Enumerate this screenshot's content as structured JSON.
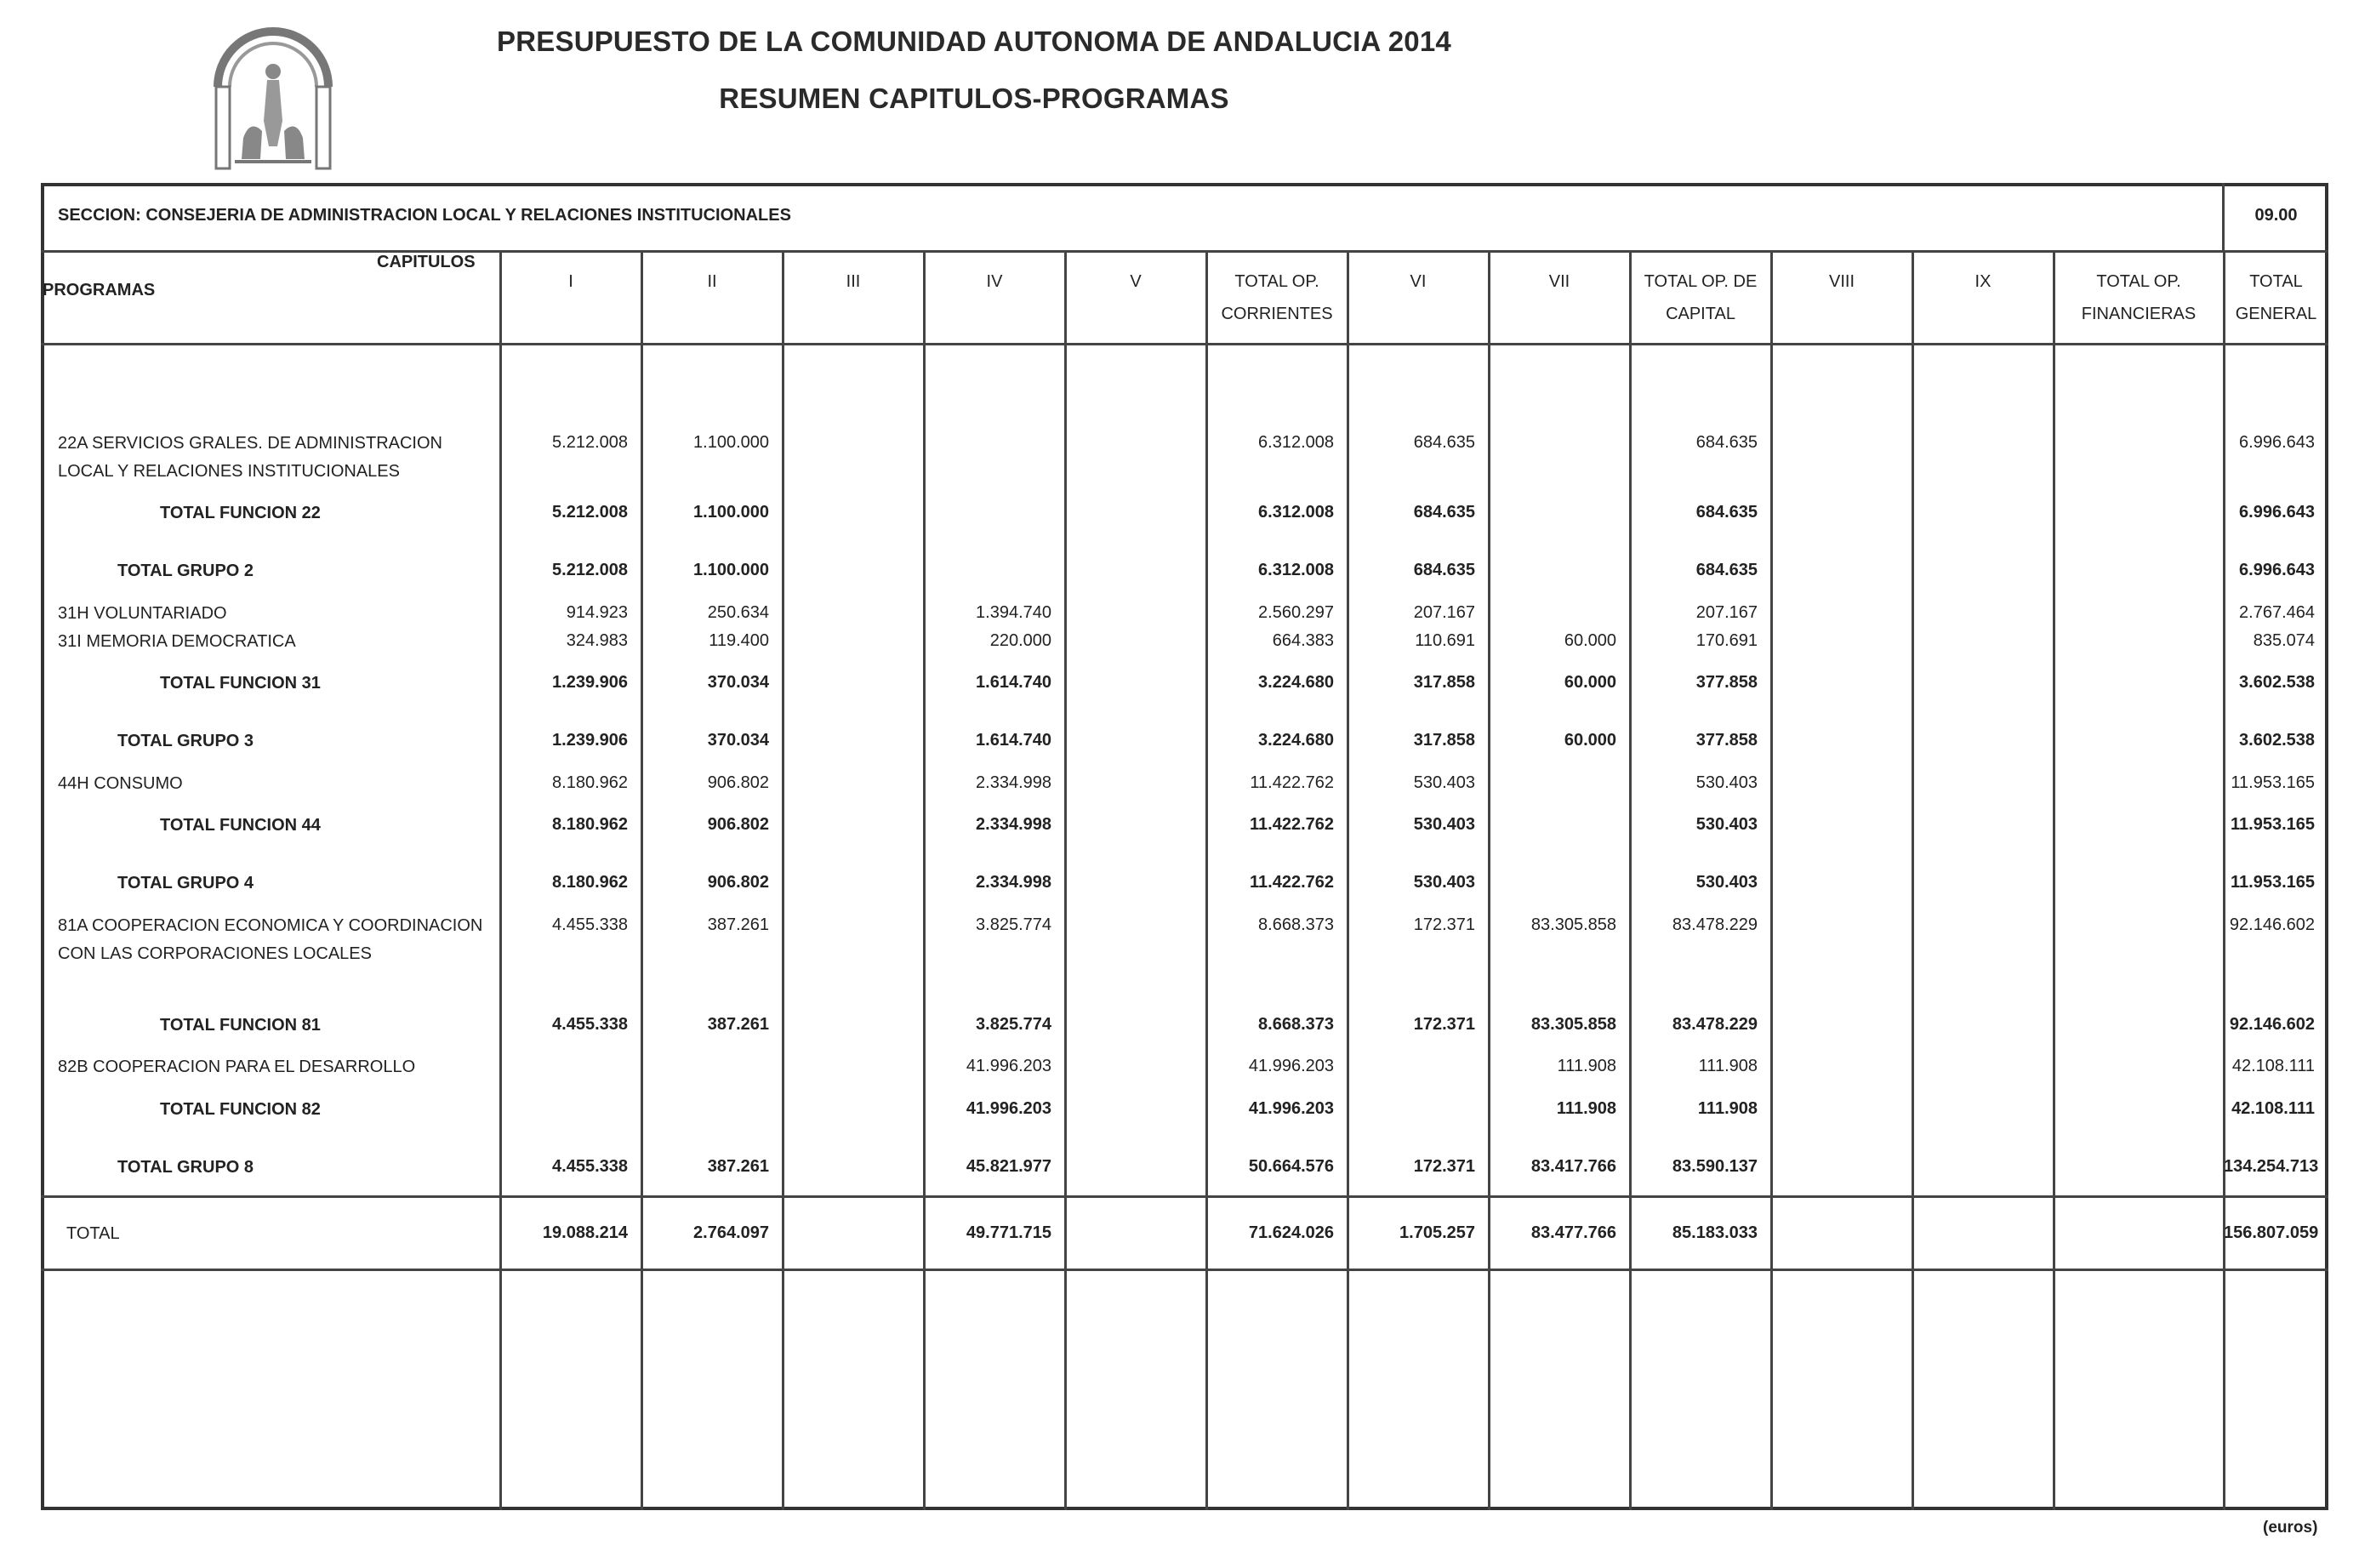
{
  "header": {
    "title": "PRESUPUESTO DE LA COMUNIDAD AUTONOMA DE ANDALUCIA 2014",
    "subtitle": "RESUMEN CAPITULOS-PROGRAMAS",
    "logo_icon": "coat-of-arms-andalucia-icon"
  },
  "section": {
    "label": "SECCION: CONSEJERIA DE ADMINISTRACION LOCAL Y RELACIONES INSTITUCIONALES",
    "code": "09.00"
  },
  "columns": {
    "capitulos": "CAPITULOS",
    "programas": "PROGRAMAS",
    "heads": [
      [
        "I"
      ],
      [
        "II"
      ],
      [
        "III"
      ],
      [
        "IV"
      ],
      [
        "V"
      ],
      [
        "TOTAL OP.",
        "CORRIENTES"
      ],
      [
        "VI"
      ],
      [
        "VII"
      ],
      [
        "TOTAL OP. DE",
        "CAPITAL"
      ],
      [
        "VIII"
      ],
      [
        "IX"
      ],
      [
        "TOTAL OP.",
        "FINANCIERAS"
      ],
      [
        "TOTAL",
        "GENERAL"
      ]
    ]
  },
  "rows": [
    {
      "label": "22A SERVICIOS GRALES. DE ADMINISTRACION LOCAL Y RELACIONES INSTITUCIONALES",
      "kind": "program",
      "values": [
        "5.212.008",
        "1.100.000",
        "",
        "",
        "",
        "6.312.008",
        "684.635",
        "",
        "684.635",
        "",
        "",
        "",
        "6.996.643"
      ]
    },
    {
      "label": "TOTAL FUNCION 22",
      "kind": "funcion",
      "values": [
        "5.212.008",
        "1.100.000",
        "",
        "",
        "",
        "6.312.008",
        "684.635",
        "",
        "684.635",
        "",
        "",
        "",
        "6.996.643"
      ]
    },
    {
      "label": "TOTAL GRUPO 2",
      "kind": "grupo",
      "values": [
        "5.212.008",
        "1.100.000",
        "",
        "",
        "",
        "6.312.008",
        "684.635",
        "",
        "684.635",
        "",
        "",
        "",
        "6.996.643"
      ]
    },
    {
      "label": "31H VOLUNTARIADO",
      "kind": "program",
      "values": [
        "914.923",
        "250.634",
        "",
        "1.394.740",
        "",
        "2.560.297",
        "207.167",
        "",
        "207.167",
        "",
        "",
        "",
        "2.767.464"
      ]
    },
    {
      "label": "31I MEMORIA DEMOCRATICA",
      "kind": "program",
      "values": [
        "324.983",
        "119.400",
        "",
        "220.000",
        "",
        "664.383",
        "110.691",
        "60.000",
        "170.691",
        "",
        "",
        "",
        "835.074"
      ]
    },
    {
      "label": "TOTAL FUNCION 31",
      "kind": "funcion",
      "values": [
        "1.239.906",
        "370.034",
        "",
        "1.614.740",
        "",
        "3.224.680",
        "317.858",
        "60.000",
        "377.858",
        "",
        "",
        "",
        "3.602.538"
      ]
    },
    {
      "label": "TOTAL GRUPO 3",
      "kind": "grupo",
      "values": [
        "1.239.906",
        "370.034",
        "",
        "1.614.740",
        "",
        "3.224.680",
        "317.858",
        "60.000",
        "377.858",
        "",
        "",
        "",
        "3.602.538"
      ]
    },
    {
      "label": "44H CONSUMO",
      "kind": "program",
      "values": [
        "8.180.962",
        "906.802",
        "",
        "2.334.998",
        "",
        "11.422.762",
        "530.403",
        "",
        "530.403",
        "",
        "",
        "",
        "11.953.165"
      ]
    },
    {
      "label": "TOTAL FUNCION 44",
      "kind": "funcion",
      "values": [
        "8.180.962",
        "906.802",
        "",
        "2.334.998",
        "",
        "11.422.762",
        "530.403",
        "",
        "530.403",
        "",
        "",
        "",
        "11.953.165"
      ]
    },
    {
      "label": "TOTAL GRUPO 4",
      "kind": "grupo",
      "values": [
        "8.180.962",
        "906.802",
        "",
        "2.334.998",
        "",
        "11.422.762",
        "530.403",
        "",
        "530.403",
        "",
        "",
        "",
        "11.953.165"
      ]
    },
    {
      "label": "81A COOPERACION ECONOMICA Y COORDINACION CON LAS CORPORACIONES LOCALES",
      "kind": "program",
      "values": [
        "4.455.338",
        "387.261",
        "",
        "3.825.774",
        "",
        "8.668.373",
        "172.371",
        "83.305.858",
        "83.478.229",
        "",
        "",
        "",
        "92.146.602"
      ]
    },
    {
      "label": "TOTAL FUNCION 81",
      "kind": "funcion",
      "values": [
        "4.455.338",
        "387.261",
        "",
        "3.825.774",
        "",
        "8.668.373",
        "172.371",
        "83.305.858",
        "83.478.229",
        "",
        "",
        "",
        "92.146.602"
      ]
    },
    {
      "label": "82B COOPERACION PARA EL DESARROLLO",
      "kind": "program",
      "values": [
        "",
        "",
        "",
        "41.996.203",
        "",
        "41.996.203",
        "",
        "111.908",
        "111.908",
        "",
        "",
        "",
        "42.108.111"
      ]
    },
    {
      "label": "TOTAL FUNCION 82",
      "kind": "funcion",
      "values": [
        "",
        "",
        "",
        "41.996.203",
        "",
        "41.996.203",
        "",
        "111.908",
        "111.908",
        "",
        "",
        "",
        "42.108.111"
      ]
    },
    {
      "label": "TOTAL GRUPO 8",
      "kind": "grupo",
      "values": [
        "4.455.338",
        "387.261",
        "",
        "45.821.977",
        "",
        "50.664.576",
        "172.371",
        "83.417.766",
        "83.590.137",
        "",
        "",
        "",
        "134.254.713"
      ]
    }
  ],
  "total": {
    "label": "TOTAL",
    "values": [
      "19.088.214",
      "2.764.097",
      "",
      "49.771.715",
      "",
      "71.624.026",
      "1.705.257",
      "83.477.766",
      "85.183.033",
      "",
      "",
      "",
      "156.807.059"
    ]
  },
  "footer": {
    "units": "(euros)"
  }
}
